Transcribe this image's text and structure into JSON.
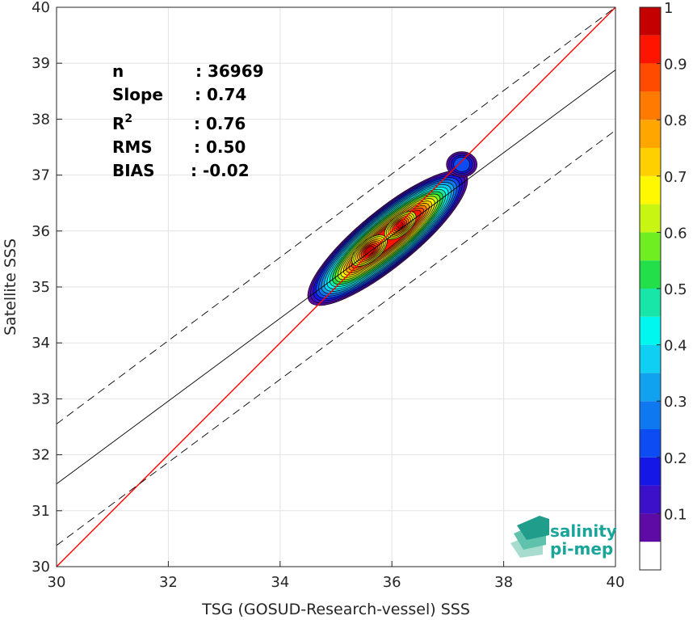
{
  "chart_data": {
    "type": "scatter",
    "title": "",
    "xlabel": "TSG (GOSUD-Research-vessel) SSS",
    "ylabel": "Satellite SSS",
    "xlim": [
      30,
      40
    ],
    "ylim": [
      30,
      40
    ],
    "xticks": [
      "30",
      "32",
      "34",
      "36",
      "38",
      "40"
    ],
    "yticks": [
      "30",
      "31",
      "32",
      "33",
      "34",
      "35",
      "36",
      "37",
      "38",
      "39",
      "40"
    ],
    "grid": true,
    "lines": [
      {
        "kind": "one-to-one",
        "color": "#ff0000",
        "style": "solid",
        "x": [
          30,
          40
        ],
        "y": [
          30,
          40
        ]
      },
      {
        "kind": "regression",
        "color": "#000000",
        "style": "solid",
        "x": [
          30,
          40
        ],
        "y": [
          31.48,
          38.88
        ]
      },
      {
        "kind": "upper-bound",
        "color": "#000000",
        "style": "dashed",
        "x": [
          30,
          40
        ],
        "y": [
          32.55,
          40.0
        ]
      },
      {
        "kind": "lower-bound",
        "color": "#000000",
        "style": "dashed",
        "x": [
          30,
          40
        ],
        "y": [
          30.38,
          37.8
        ]
      }
    ],
    "density_peaks": [
      {
        "x": 35.6,
        "y": 35.65,
        "value": 1.0
      },
      {
        "x": 36.15,
        "y": 36.1,
        "value": 0.95
      },
      {
        "x": 37.25,
        "y": 37.22,
        "value": 0.2
      }
    ],
    "stats": [
      {
        "label": "n",
        "value": ": 36969"
      },
      {
        "label": "Slope",
        "value": ": 0.74"
      },
      {
        "label": "R",
        "sup": "2",
        "value": ": 0.76"
      },
      {
        "label": "RMS",
        "value": ": 0.50"
      },
      {
        "label": "BIAS",
        "value": ": -0.02"
      }
    ],
    "colorbar": {
      "ticks": [
        "0.1",
        "0.2",
        "0.3",
        "0.4",
        "0.5",
        "0.6",
        "0.7",
        "0.8",
        "0.9",
        "1"
      ],
      "range": [
        0,
        1
      ],
      "levels": [
        0.0,
        0.05,
        0.1,
        0.15,
        0.2,
        0.25,
        0.3,
        0.35,
        0.4,
        0.45,
        0.5,
        0.55,
        0.6,
        0.65,
        0.7,
        0.75,
        0.8,
        0.85,
        0.9,
        0.95,
        1.0
      ],
      "colors": [
        "#ffffff",
        "#5e0ba5",
        "#3b10c8",
        "#1517e6",
        "#0c4cf2",
        "#0e78f0",
        "#10a2ee",
        "#0fd0f2",
        "#00f7ef",
        "#18e5a8",
        "#22df4a",
        "#6fef21",
        "#c9f512",
        "#fff800",
        "#ffd000",
        "#ffa700",
        "#ff7a00",
        "#ff4b00",
        "#ff1400",
        "#c40000"
      ]
    }
  },
  "logo": {
    "line1": "salinity",
    "line2": "pi-mep"
  }
}
